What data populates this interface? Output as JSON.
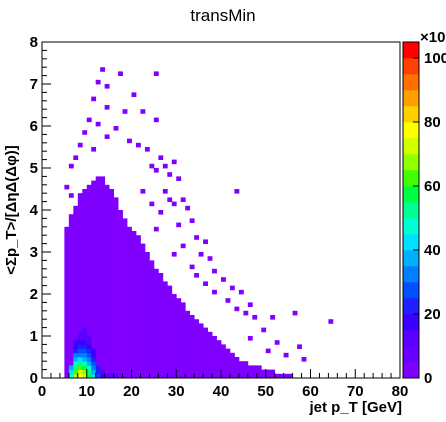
{
  "chart_data": {
    "type": "heatmap",
    "title": "transMin",
    "xlabel": "jet p_T [GeV]",
    "ylabel": "<Σp_T>/[ΔηΔ(Δφ)]",
    "xlim": [
      0,
      80
    ],
    "ylim": [
      0,
      8
    ],
    "x_ticks": [
      "0",
      "10",
      "20",
      "30",
      "40",
      "50",
      "60",
      "70",
      "80"
    ],
    "y_ticks": [
      "0",
      "1",
      "2",
      "3",
      "4",
      "5",
      "6",
      "7",
      "8"
    ],
    "colorbar": {
      "range": [
        0,
        105
      ],
      "ticks": [
        "0",
        "20",
        "40",
        "60",
        "80",
        "100"
      ],
      "exponent_label": "×10",
      "palette": [
        "#7f00ff",
        "#6a00ff",
        "#5a00ff",
        "#3a00ff",
        "#1f1fff",
        "#0050ff",
        "#0080ff",
        "#00b0ff",
        "#00e0ff",
        "#00ffd0",
        "#00ff90",
        "#00ff40",
        "#40ff00",
        "#90ff00",
        "#d0ff00",
        "#ffff00",
        "#ffd000",
        "#ffa000",
        "#ff7000",
        "#ff4000",
        "#ff0000"
      ]
    },
    "cell_size": {
      "x": 1.0,
      "y": 0.1
    },
    "low_fill_color": "#7f00ff",
    "column_max_y": [
      [
        5,
        3.6
      ],
      [
        6,
        3.9
      ],
      [
        7,
        4.1
      ],
      [
        8,
        4.4
      ],
      [
        9,
        4.5
      ],
      [
        10,
        4.6
      ],
      [
        11,
        4.7
      ],
      [
        12,
        4.8
      ],
      [
        13,
        4.8
      ],
      [
        14,
        4.6
      ],
      [
        15,
        4.5
      ],
      [
        16,
        4.3
      ],
      [
        17,
        4.0
      ],
      [
        18,
        3.8
      ],
      [
        19,
        3.6
      ],
      [
        20,
        3.5
      ],
      [
        21,
        3.4
      ],
      [
        22,
        3.2
      ],
      [
        23,
        3.0
      ],
      [
        24,
        2.8
      ],
      [
        25,
        2.6
      ],
      [
        26,
        2.5
      ],
      [
        27,
        2.3
      ],
      [
        28,
        2.2
      ],
      [
        29,
        2.0
      ],
      [
        30,
        1.9
      ],
      [
        31,
        1.8
      ],
      [
        32,
        1.6
      ],
      [
        33,
        1.5
      ],
      [
        34,
        1.4
      ],
      [
        35,
        1.3
      ],
      [
        36,
        1.2
      ],
      [
        37,
        1.1
      ],
      [
        38,
        1.0
      ],
      [
        39,
        0.9
      ],
      [
        40,
        0.8
      ],
      [
        41,
        0.7
      ],
      [
        42,
        0.6
      ],
      [
        43,
        0.5
      ],
      [
        44,
        0.4
      ],
      [
        45,
        0.4
      ],
      [
        46,
        0.3
      ],
      [
        47,
        0.3
      ],
      [
        48,
        0.3
      ],
      [
        49,
        0.2
      ],
      [
        50,
        0.2
      ],
      [
        51,
        0.2
      ],
      [
        52,
        0.1
      ],
      [
        53,
        0.1
      ],
      [
        54,
        0.1
      ],
      [
        55,
        0.1
      ]
    ],
    "sparse_cells": [
      [
        13,
        7.3
      ],
      [
        17,
        7.2
      ],
      [
        25,
        7.2
      ],
      [
        12,
        7.0
      ],
      [
        14,
        6.9
      ],
      [
        20,
        6.7
      ],
      [
        11,
        6.6
      ],
      [
        14,
        6.4
      ],
      [
        18,
        6.3
      ],
      [
        22,
        6.3
      ],
      [
        10,
        6.1
      ],
      [
        25,
        6.1
      ],
      [
        12,
        6.0
      ],
      [
        16,
        5.9
      ],
      [
        9,
        5.8
      ],
      [
        14,
        5.7
      ],
      [
        19,
        5.6
      ],
      [
        8,
        5.5
      ],
      [
        21,
        5.5
      ],
      [
        11,
        5.4
      ],
      [
        23,
        5.4
      ],
      [
        7,
        5.2
      ],
      [
        26,
        5.2
      ],
      [
        29,
        5.1
      ],
      [
        6,
        5.0
      ],
      [
        24,
        5.0
      ],
      [
        27,
        5.0
      ],
      [
        25,
        4.9
      ],
      [
        28,
        4.8
      ],
      [
        5,
        4.5
      ],
      [
        30,
        4.7
      ],
      [
        6,
        4.3
      ],
      [
        22,
        4.4
      ],
      [
        27,
        4.4
      ],
      [
        43,
        4.4
      ],
      [
        28,
        4.2
      ],
      [
        31,
        4.2
      ],
      [
        24,
        4.1
      ],
      [
        29,
        4.1
      ],
      [
        32,
        4.0
      ],
      [
        26,
        3.9
      ],
      [
        33,
        3.7
      ],
      [
        25,
        3.5
      ],
      [
        30,
        3.6
      ],
      [
        34,
        3.3
      ],
      [
        36,
        3.2
      ],
      [
        31,
        3.1
      ],
      [
        29,
        2.9
      ],
      [
        35,
        2.9
      ],
      [
        37,
        2.8
      ],
      [
        33,
        2.6
      ],
      [
        38,
        2.5
      ],
      [
        34,
        2.4
      ],
      [
        40,
        2.3
      ],
      [
        36,
        2.2
      ],
      [
        42,
        2.1
      ],
      [
        38,
        2.0
      ],
      [
        44,
        2.0
      ],
      [
        41,
        1.8
      ],
      [
        46,
        1.7
      ],
      [
        43,
        1.6
      ],
      [
        45,
        1.5
      ],
      [
        47,
        1.4
      ],
      [
        51,
        1.4
      ],
      [
        56,
        1.5
      ],
      [
        64,
        1.3
      ],
      [
        49,
        1.1
      ],
      [
        46,
        0.9
      ],
      [
        52,
        0.8
      ],
      [
        50,
        0.6
      ],
      [
        54,
        0.5
      ],
      [
        57,
        0.7
      ],
      [
        58,
        0.4
      ]
    ],
    "high_cells": [
      [
        6,
        0.0,
        9
      ],
      [
        7,
        0.0,
        13
      ],
      [
        8,
        0.0,
        15
      ],
      [
        9,
        0.0,
        14
      ],
      [
        10,
        0.0,
        11
      ],
      [
        11,
        0.0,
        8
      ],
      [
        12,
        0.0,
        5
      ],
      [
        6,
        0.1,
        8
      ],
      [
        7,
        0.1,
        12
      ],
      [
        8,
        0.1,
        14
      ],
      [
        9,
        0.1,
        13
      ],
      [
        10,
        0.1,
        10
      ],
      [
        11,
        0.1,
        7
      ],
      [
        12,
        0.1,
        4
      ],
      [
        6,
        0.2,
        7
      ],
      [
        7,
        0.2,
        10
      ],
      [
        8,
        0.2,
        12
      ],
      [
        9,
        0.2,
        11
      ],
      [
        10,
        0.2,
        9
      ],
      [
        11,
        0.2,
        6
      ],
      [
        12,
        0.2,
        4
      ],
      [
        7,
        0.3,
        9
      ],
      [
        8,
        0.3,
        10
      ],
      [
        9,
        0.3,
        9
      ],
      [
        10,
        0.3,
        7
      ],
      [
        11,
        0.3,
        5
      ],
      [
        7,
        0.4,
        7
      ],
      [
        8,
        0.4,
        8
      ],
      [
        9,
        0.4,
        7
      ],
      [
        10,
        0.4,
        6
      ],
      [
        11,
        0.4,
        4
      ],
      [
        7,
        0.5,
        6
      ],
      [
        8,
        0.5,
        6
      ],
      [
        9,
        0.5,
        6
      ],
      [
        10,
        0.5,
        5
      ],
      [
        11,
        0.5,
        3
      ],
      [
        7,
        0.6,
        4
      ],
      [
        8,
        0.6,
        5
      ],
      [
        9,
        0.6,
        5
      ],
      [
        10,
        0.6,
        4
      ],
      [
        11,
        0.6,
        3
      ],
      [
        7,
        0.7,
        3
      ],
      [
        8,
        0.7,
        4
      ],
      [
        9,
        0.7,
        4
      ],
      [
        10,
        0.7,
        3
      ],
      [
        7,
        0.8,
        3
      ],
      [
        8,
        0.8,
        3
      ],
      [
        9,
        0.8,
        3
      ],
      [
        10,
        0.8,
        2
      ],
      [
        8,
        0.9,
        2
      ],
      [
        9,
        0.9,
        2
      ],
      [
        10,
        0.9,
        2
      ],
      [
        8,
        1.0,
        2
      ],
      [
        9,
        1.0,
        2
      ],
      [
        9,
        1.1,
        2
      ],
      [
        13,
        0.0,
        3
      ],
      [
        14,
        0.0,
        2
      ],
      [
        13,
        0.1,
        2
      ],
      [
        15,
        0.0,
        2
      ],
      [
        16,
        0.0,
        2
      ]
    ]
  }
}
